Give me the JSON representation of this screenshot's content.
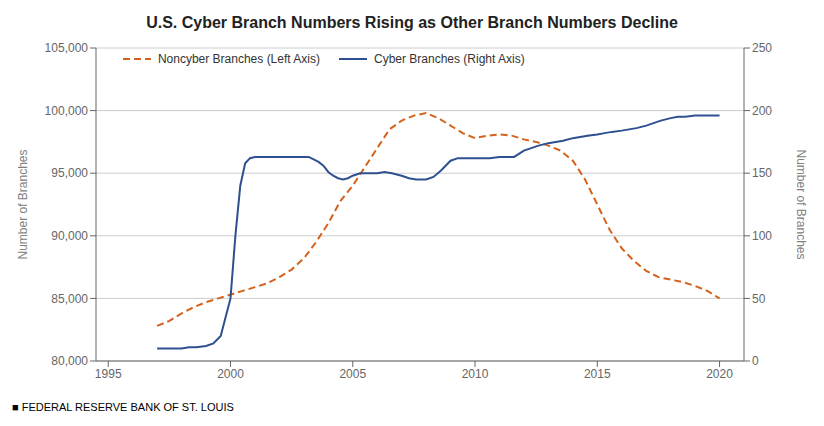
{
  "chart_data": {
    "type": "line",
    "title": "U.S. Cyber Branch Numbers Rising as Other Branch Numbers Decline",
    "ylabel": "Number of Branches",
    "y2label": "Number of Branches",
    "footnote": "■  FEDERAL RESERVE BANK OF ST. LOUIS",
    "xlim": [
      1994.5,
      2021.0
    ],
    "xticks": [
      1995,
      2000,
      2005,
      2010,
      2015,
      2020
    ],
    "ylim": [
      80000,
      105000
    ],
    "yticks": [
      {
        "value": 80000,
        "label": "80,000"
      },
      {
        "value": 85000,
        "label": "85,000"
      },
      {
        "value": 90000,
        "label": "90,000"
      },
      {
        "value": 95000,
        "label": "95,000"
      },
      {
        "value": 100000,
        "label": "100,000"
      },
      {
        "value": 105000,
        "label": "105,000"
      }
    ],
    "y2lim": [
      0,
      250
    ],
    "y2ticks": [
      0,
      50,
      100,
      150,
      200,
      250
    ],
    "grid": true,
    "legend": "upper left",
    "series": [
      {
        "name": "Noncyber Branches (Left Axis)",
        "color": "#D4621A",
        "line_style": "dashed",
        "axis": "y",
        "x": [
          1997.0,
          1997.5,
          1998.0,
          1998.5,
          1999.0,
          1999.5,
          2000.0,
          2000.5,
          2001.0,
          2001.5,
          2002.0,
          2002.5,
          2003.0,
          2003.5,
          2004.0,
          2004.5,
          2005.0,
          2005.5,
          2006.0,
          2006.5,
          2007.0,
          2007.5,
          2008.0,
          2008.5,
          2009.0,
          2009.5,
          2010.0,
          2010.5,
          2011.0,
          2011.5,
          2012.0,
          2012.5,
          2013.0,
          2013.5,
          2014.0,
          2014.5,
          2015.0,
          2015.5,
          2016.0,
          2016.5,
          2017.0,
          2017.5,
          2018.0,
          2018.5,
          2019.0,
          2019.5,
          2020.0
        ],
        "values": [
          82800,
          83200,
          83800,
          84300,
          84700,
          85000,
          85300,
          85600,
          85900,
          86200,
          86700,
          87300,
          88200,
          89500,
          91000,
          92800,
          94000,
          95500,
          97000,
          98500,
          99200,
          99600,
          99800,
          99400,
          98800,
          98200,
          97800,
          98000,
          98100,
          98000,
          97700,
          97500,
          97200,
          96800,
          96000,
          94500,
          92500,
          90500,
          89000,
          88000,
          87200,
          86700,
          86500,
          86300,
          86000,
          85600,
          85000
        ]
      },
      {
        "name": "Cyber Branches (Right Axis)",
        "color": "#2E5090",
        "line_style": "solid",
        "axis": "y2",
        "x": [
          1997.0,
          1997.3,
          1997.6,
          1998.0,
          1998.3,
          1998.6,
          1999.0,
          1999.3,
          1999.6,
          2000.0,
          2000.2,
          2000.4,
          2000.6,
          2000.8,
          2001.0,
          2001.3,
          2001.6,
          2002.0,
          2002.3,
          2002.6,
          2003.0,
          2003.2,
          2003.4,
          2003.6,
          2003.8,
          2004.0,
          2004.2,
          2004.4,
          2004.6,
          2004.8,
          2005.0,
          2005.3,
          2005.6,
          2006.0,
          2006.3,
          2006.6,
          2007.0,
          2007.3,
          2007.6,
          2008.0,
          2008.3,
          2008.6,
          2009.0,
          2009.3,
          2009.6,
          2010.0,
          2010.3,
          2010.6,
          2011.0,
          2011.3,
          2011.6,
          2012.0,
          2012.3,
          2012.6,
          2013.0,
          2013.3,
          2013.6,
          2014.0,
          2014.3,
          2014.6,
          2015.0,
          2015.3,
          2015.6,
          2016.0,
          2016.3,
          2016.6,
          2017.0,
          2017.3,
          2017.6,
          2018.0,
          2018.3,
          2018.6,
          2019.0,
          2019.3,
          2019.6,
          2020.0
        ],
        "values": [
          10,
          10,
          10,
          10,
          11,
          11,
          12,
          14,
          20,
          50,
          100,
          140,
          158,
          162,
          163,
          163,
          163,
          163,
          163,
          163,
          163,
          163,
          161,
          159,
          156,
          151,
          148,
          146,
          145,
          146,
          148,
          150,
          150,
          150,
          151,
          150,
          148,
          146,
          145,
          145,
          147,
          152,
          160,
          162,
          162,
          162,
          162,
          162,
          163,
          163,
          163,
          168,
          170,
          172,
          174,
          175,
          176,
          178,
          179,
          180,
          181,
          182,
          183,
          184,
          185,
          186,
          188,
          190,
          192,
          194,
          195,
          195,
          196,
          196,
          196,
          196
        ]
      }
    ]
  }
}
